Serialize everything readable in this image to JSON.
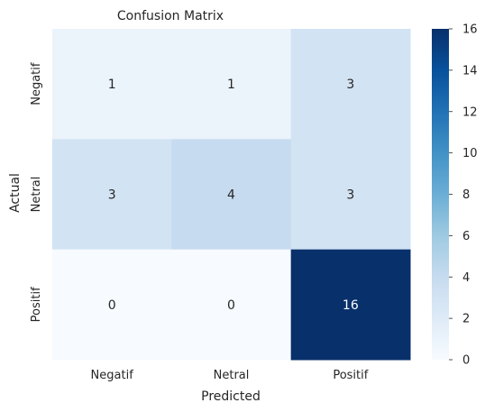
{
  "chart_data": {
    "type": "heatmap",
    "title": "Confusion Matrix",
    "xlabel": "Predicted",
    "ylabel": "Actual",
    "x_categories": [
      "Negatif",
      "Netral",
      "Positif"
    ],
    "y_categories": [
      "Negatif",
      "Netral",
      "Positif"
    ],
    "values": [
      [
        1,
        1,
        3
      ],
      [
        3,
        4,
        3
      ],
      [
        0,
        0,
        16
      ]
    ],
    "colorbar": {
      "min": 0,
      "max": 16,
      "ticks": [
        0,
        2,
        4,
        6,
        8,
        10,
        12,
        14,
        16
      ],
      "colormap": "Blues"
    },
    "grid": false
  }
}
